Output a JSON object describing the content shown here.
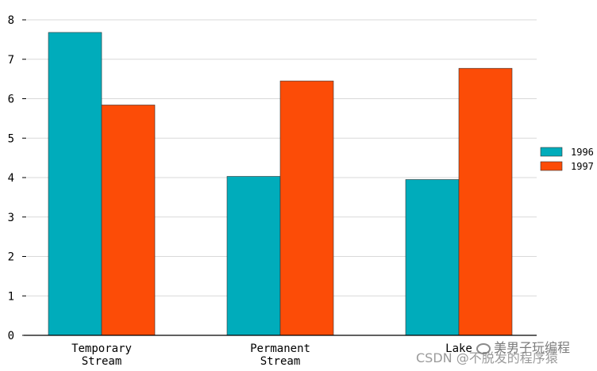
{
  "chart_data": {
    "type": "bar",
    "categories": [
      "Temporary\nStream",
      "Permanent\nStream",
      "Lake"
    ],
    "series": [
      {
        "name": "1996",
        "values": [
          7.68,
          4.03,
          3.95
        ],
        "color": "#00ACBB"
      },
      {
        "name": "1997",
        "values": [
          5.84,
          6.45,
          6.77
        ],
        "color": "#FC4C07"
      }
    ],
    "ylim": [
      0,
      8
    ],
    "yticks": [
      0,
      1,
      2,
      3,
      4,
      5,
      6,
      7,
      8
    ],
    "grid": true,
    "legend_position": "right"
  },
  "watermark": {
    "top_line": "美男子玩编程",
    "bottom_line": "CSDN @不脱发的程序猿"
  }
}
